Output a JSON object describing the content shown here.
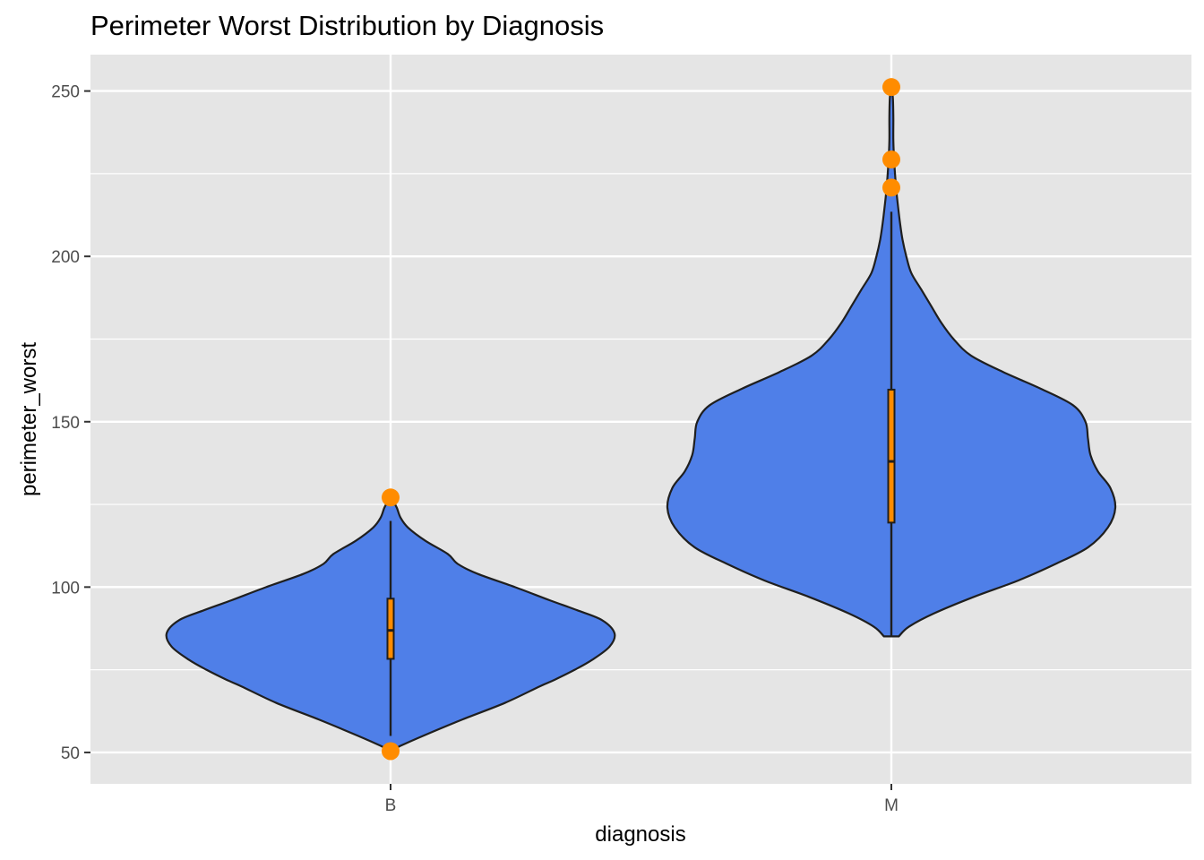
{
  "chart_data": {
    "type": "violin",
    "title": "Perimeter Worst Distribution by Diagnosis",
    "xlabel": "diagnosis",
    "ylabel": "perimeter_worst",
    "categories": [
      "B",
      "M"
    ],
    "y_ticks": [
      50,
      100,
      150,
      200,
      250
    ],
    "ylim": [
      40.5,
      261
    ],
    "grid": true,
    "colors": {
      "panel": "#e5e5e5",
      "grid": "#ffffff",
      "violin_fill": "#4f7fe8",
      "violin_stroke": "#1f1f1f",
      "box_fill": "#ff8c00",
      "outlier": "#ff8c00"
    },
    "series": [
      {
        "category": "B",
        "box": {
          "q1": 78.3,
          "median": 86.9,
          "q3": 96.5,
          "whisker_low": 55.0,
          "whisker_high": 120.0
        },
        "outliers": [
          127.1,
          50.4
        ],
        "violin_range": [
          50.4,
          127.1
        ],
        "density_profile": [
          [
            50.4,
            0.0
          ],
          [
            52,
            0.04
          ],
          [
            55,
            0.13
          ],
          [
            60,
            0.29
          ],
          [
            65,
            0.46
          ],
          [
            70,
            0.6
          ],
          [
            72,
            0.66
          ],
          [
            75,
            0.74
          ],
          [
            78,
            0.81
          ],
          [
            82,
            0.88
          ],
          [
            86,
            0.9
          ],
          [
            90,
            0.85
          ],
          [
            93,
            0.75
          ],
          [
            96,
            0.64
          ],
          [
            100,
            0.5
          ],
          [
            104,
            0.35
          ],
          [
            107,
            0.27
          ],
          [
            110,
            0.23
          ],
          [
            114,
            0.14
          ],
          [
            118,
            0.07
          ],
          [
            121,
            0.04
          ],
          [
            124,
            0.025
          ],
          [
            126,
            0.01
          ],
          [
            127.1,
            0.0
          ]
        ]
      },
      {
        "category": "M",
        "box": {
          "q1": 119.5,
          "median": 138.0,
          "q3": 159.7,
          "whisker_low": 85.1,
          "whisker_high": 213.5
        },
        "outliers": [
          251.2,
          229.3,
          220.8
        ],
        "violin_range": [
          85.1,
          251.2
        ],
        "density_profile": [
          [
            85.1,
            0.03
          ],
          [
            88,
            0.07
          ],
          [
            92,
            0.17
          ],
          [
            97,
            0.33
          ],
          [
            102,
            0.51
          ],
          [
            107,
            0.66
          ],
          [
            112,
            0.79
          ],
          [
            118,
            0.87
          ],
          [
            124,
            0.9
          ],
          [
            130,
            0.88
          ],
          [
            135,
            0.83
          ],
          [
            140,
            0.8
          ],
          [
            145,
            0.79
          ],
          [
            150,
            0.78
          ],
          [
            155,
            0.73
          ],
          [
            160,
            0.6
          ],
          [
            165,
            0.45
          ],
          [
            170,
            0.32
          ],
          [
            175,
            0.25
          ],
          [
            180,
            0.2
          ],
          [
            185,
            0.16
          ],
          [
            190,
            0.12
          ],
          [
            195,
            0.08
          ],
          [
            200,
            0.06
          ],
          [
            205,
            0.045
          ],
          [
            210,
            0.035
          ],
          [
            215,
            0.027
          ],
          [
            220,
            0.02
          ],
          [
            228,
            0.012
          ],
          [
            235,
            0.008
          ],
          [
            242,
            0.008
          ],
          [
            248,
            0.006
          ],
          [
            251.2,
            0.0
          ]
        ]
      }
    ]
  }
}
